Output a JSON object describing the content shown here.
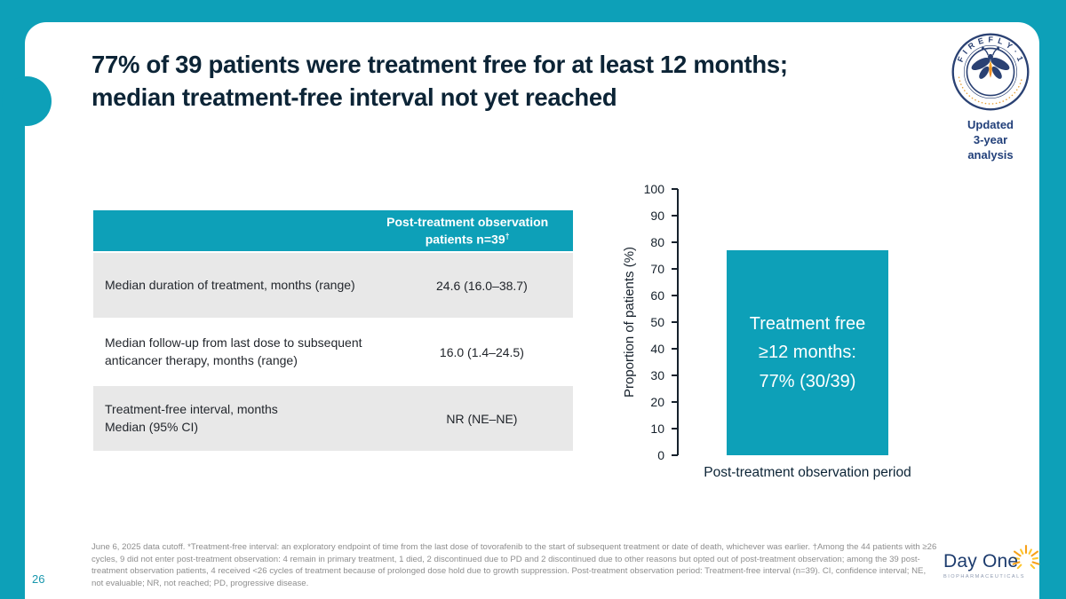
{
  "slide": {
    "title": "77% of 39 patients were treatment free for at least 12 months;\nmedian treatment-free interval not yet reached"
  },
  "badge": {
    "arc_text": "F I R E F L Y · 1",
    "caption": "Updated\n3-year analysis",
    "navy": "#2a4173",
    "orange": "#e8a33d"
  },
  "table": {
    "header_line1": "Post-treatment observation",
    "header_line2": "patients n=39",
    "header_sup": "†",
    "rows": [
      {
        "label": "Median duration of treatment, months (range)",
        "value": "24.6 (16.0–38.7)"
      },
      {
        "label": "Median follow-up from last dose to subsequent anticancer therapy, months (range)",
        "value": "16.0 (1.4–24.5)"
      },
      {
        "label": "Treatment-free interval, months\nMedian (95% CI)",
        "value": "NR (NE–NE)"
      }
    ]
  },
  "chart_data": {
    "type": "bar",
    "categories": [
      "Post-treatment observation period"
    ],
    "values": [
      77
    ],
    "bar_label": "Treatment free\n≥12 months:\n77% (30/39)",
    "title": "",
    "xlabel": "Post-treatment observation period",
    "ylabel": "Proportion of patients (%)",
    "ylim": [
      0,
      100
    ],
    "yticks": [
      0,
      10,
      20,
      30,
      40,
      50,
      60,
      70,
      80,
      90,
      100
    ],
    "bar_color": "#0da0b8",
    "grid": false,
    "legend": false
  },
  "footnote": {
    "text": "June 6, 2025 data cutoff. *Treatment-free interval: an exploratory endpoint of time from the last dose of tovorafenib to the start of subsequent treatment or date of death, whichever was earlier. †Among the 44 patients with ≥26 cycles, 9 did not enter post-treatment observation: 4 remain in primary treatment, 1 died, 2 discontinued due to PD and 2 discontinued due to other reasons but opted out of post-treatment observation; among the 39 post-treatment observation patients, 4 received <26 cycles of treatment because of prolonged dose hold due to growth suppression. Post-treatment observation period: Treatment-free interval (n=39). CI, confidence interval; NE, not evaluable; NR, not reached; PD, progressive disease."
  },
  "page_number": "26",
  "logo": {
    "name": "Day One",
    "tagline": "BIOPHARMACEUTICALS"
  },
  "colors": {
    "teal": "#0da0b8",
    "navy_title": "#0c2436",
    "badge_navy": "#2a4173",
    "badge_orange": "#e8a33d",
    "row_gray": "#e8e8e8",
    "footnote_gray": "#8e8e8e",
    "logo_navy": "#1d3c6e",
    "sun_orange": "#f7a11a",
    "sun_yellow": "#ffc62b"
  }
}
